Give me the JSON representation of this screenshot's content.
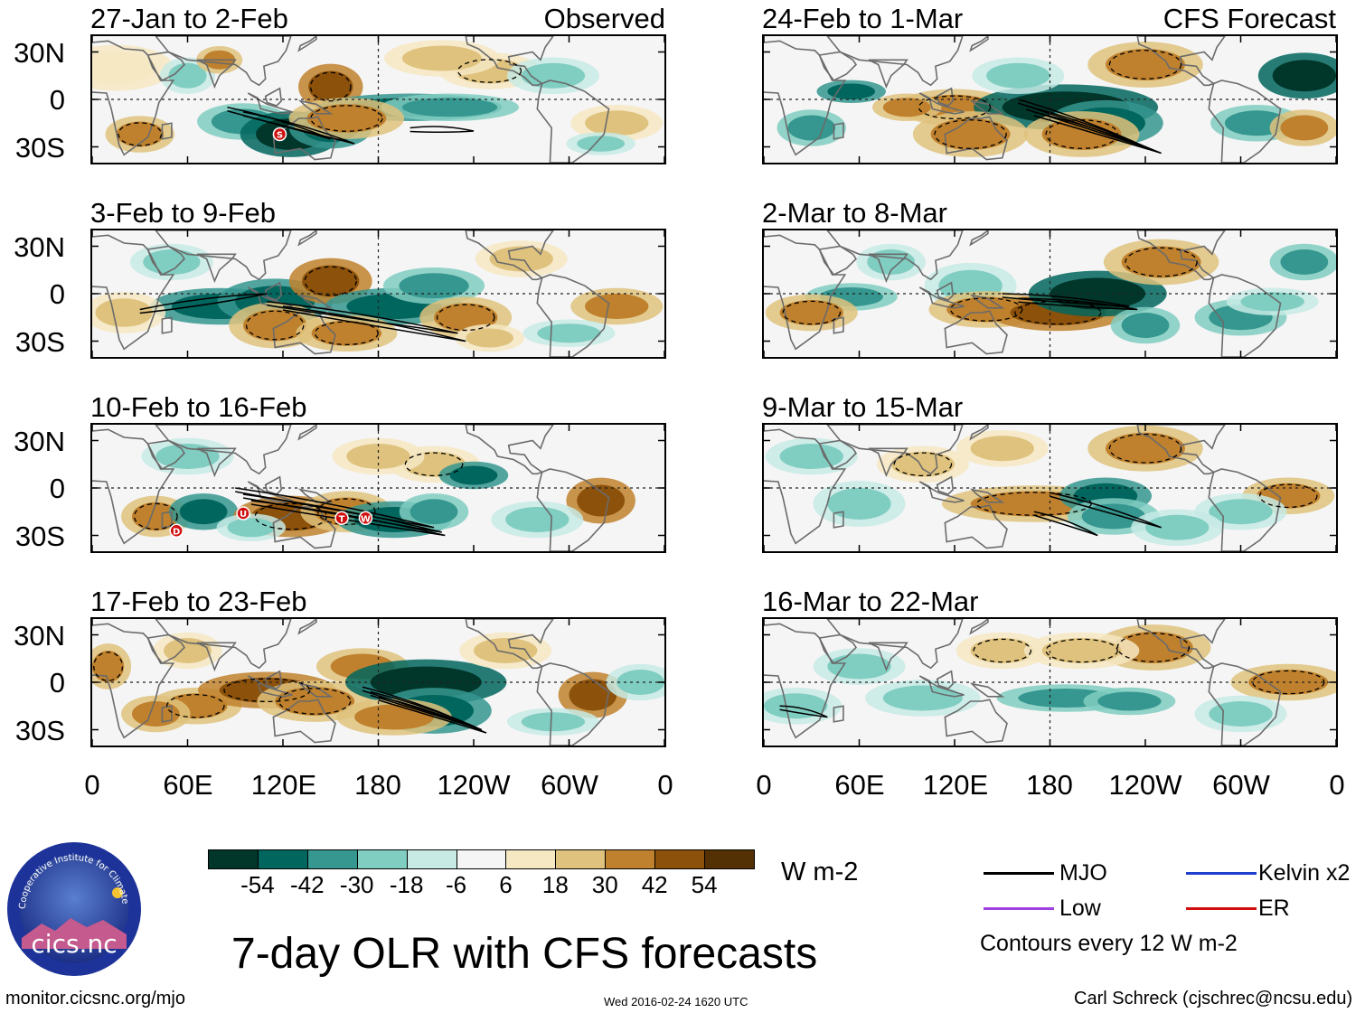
{
  "main_title": "7-day OLR with CFS forecasts",
  "panels_left": [
    {
      "title": "27-Jan to 2-Feb",
      "label": "Observed"
    },
    {
      "title": "3-Feb to 9-Feb",
      "label": ""
    },
    {
      "title": "10-Feb to 16-Feb",
      "label": ""
    },
    {
      "title": "17-Feb to 23-Feb",
      "label": ""
    }
  ],
  "panels_right": [
    {
      "title": "24-Feb to 1-Mar",
      "label": "CFS Forecast"
    },
    {
      "title": "2-Mar to 8-Mar",
      "label": ""
    },
    {
      "title": "9-Mar to 15-Mar",
      "label": ""
    },
    {
      "title": "16-Mar to 22-Mar",
      "label": ""
    }
  ],
  "y_ticks": [
    "30N",
    "0",
    "30S"
  ],
  "x_ticks": [
    "0",
    "60E",
    "120E",
    "180",
    "120W",
    "60W",
    "0"
  ],
  "colorbar": {
    "unit": "W m-2",
    "colors": [
      "#01362a",
      "#01665e",
      "#35978f",
      "#80cdc1",
      "#c7eae5",
      "#f5f5f5",
      "#f6e8c3",
      "#dfc27d",
      "#bf812d",
      "#8c510a",
      "#543005"
    ],
    "ticks": [
      "-54",
      "-42",
      "-30",
      "-18",
      "-6",
      "6",
      "18",
      "30",
      "42",
      "54"
    ]
  },
  "legend": {
    "items": [
      {
        "label": "MJO",
        "color": "#000000"
      },
      {
        "label": "Kelvin x2",
        "color": "#1f3fcf"
      },
      {
        "label": "Low",
        "color": "#a040e0"
      },
      {
        "label": "ER",
        "color": "#d01010"
      }
    ],
    "note": "Contours every 12 W m-2"
  },
  "logo": {
    "text": "cics.nc",
    "ring_text": "Cooperative Institute for Climate and Satellites"
  },
  "footer": {
    "url": "monitor.cicsnc.org/mjo",
    "timestamp": "Wed 2016-02-24 1620 UTC",
    "credit": "Carl Schreck (cjschrec@ncsu.edu)"
  },
  "storm_markers": [
    {
      "panel": "left-0",
      "letter": "S"
    },
    {
      "panel": "left-2",
      "letter": "D"
    },
    {
      "panel": "left-2",
      "letter": "U"
    },
    {
      "panel": "left-2",
      "letter": "T"
    },
    {
      "panel": "left-2",
      "letter": "W"
    }
  ],
  "chart_data": {
    "type": "heatmap",
    "title": "7-day OLR with CFS forecasts",
    "variable": "OLR anomaly",
    "units": "W m-2",
    "contour_interval": 12,
    "color_levels": [
      -54,
      -42,
      -30,
      -18,
      -6,
      6,
      18,
      30,
      42,
      54
    ],
    "xlabel": "",
    "ylabel": "",
    "x_ticks": [
      "0",
      "60E",
      "120E",
      "180",
      "120W",
      "60W",
      "0"
    ],
    "y_ticks": [
      "30N",
      "0",
      "30S"
    ],
    "lon_range": [
      0,
      360
    ],
    "lat_range": [
      -40,
      40
    ],
    "periods": [
      {
        "title": "27-Jan to 2-Feb",
        "source": "Observed"
      },
      {
        "title": "3-Feb to 9-Feb",
        "source": "Observed"
      },
      {
        "title": "10-Feb to 16-Feb",
        "source": "Observed"
      },
      {
        "title": "17-Feb to 23-Feb",
        "source": "Observed"
      },
      {
        "title": "24-Feb to 1-Mar",
        "source": "CFS Forecast"
      },
      {
        "title": "2-Mar to 8-Mar",
        "source": "CFS Forecast"
      },
      {
        "title": "9-Mar to 15-Mar",
        "source": "CFS Forecast"
      },
      {
        "title": "16-Mar to 22-Mar",
        "source": "CFS Forecast"
      }
    ]
  }
}
